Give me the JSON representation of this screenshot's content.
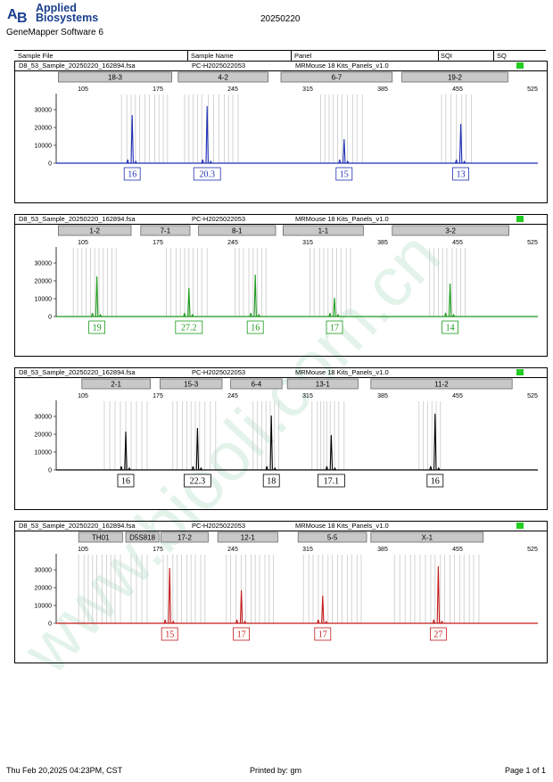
{
  "header": {
    "brand_line1": "Applied",
    "brand_line2": "Biosystems",
    "software": "GeneMapper Software 6",
    "date": "20250220"
  },
  "table_header": {
    "col1": "Sample File",
    "col2": "Sample Name",
    "col3": "Panel",
    "col4": "SQI",
    "col5": "SQ"
  },
  "footer": {
    "left": "Thu Feb 20,2025 04:23PM, CST",
    "center": "Printed by: gm",
    "right": "Page 1 of 1"
  },
  "watermark": "www.biooli.com.cn",
  "colors": {
    "blue": "#1f2fb5",
    "green": "#1a9a1a",
    "black": "#000000",
    "red": "#c41a1a",
    "sq": "#22cc22"
  },
  "chart_data": [
    {
      "type": "line",
      "sample_file": "D8_53_Sample_20250220_162894.fsa",
      "sample_name": "PC-H2025022053",
      "panel": "MRMouse 18 Kits_Panels_v1.0",
      "color": "#1f2fb5",
      "x_ticks": [
        105,
        175,
        245,
        315,
        385,
        455,
        525
      ],
      "y_ticks": [
        0,
        10000,
        20000,
        30000
      ],
      "xlim": [
        80,
        530
      ],
      "ylim": [
        0,
        35000
      ],
      "markers": [
        {
          "label": "18-3",
          "start": 82,
          "end": 188
        },
        {
          "label": "4-2",
          "start": 194,
          "end": 278
        },
        {
          "label": "6-7",
          "start": 290,
          "end": 394
        },
        {
          "label": "19-2",
          "start": 403,
          "end": 502
        }
      ],
      "peaks": [
        {
          "x": 151,
          "height": 27000,
          "allele": "16"
        },
        {
          "x": 221,
          "height": 32000,
          "allele": "20.3"
        },
        {
          "x": 349,
          "height": 13500,
          "allele": "15"
        },
        {
          "x": 458,
          "height": 22000,
          "allele": "13"
        }
      ],
      "bins": [
        [
          141,
          146,
          150,
          154,
          158,
          163,
          167,
          172,
          176,
          180,
          184
        ],
        [
          200,
          204,
          208,
          212,
          216,
          222,
          227,
          232,
          237,
          241,
          245,
          250
        ],
        [
          327,
          331,
          335,
          339,
          343,
          347,
          352,
          357,
          361,
          366
        ],
        [
          440,
          444,
          449,
          454,
          459,
          463,
          468
        ]
      ]
    },
    {
      "type": "line",
      "sample_file": "D8_53_Sample_20250220_162894.fsa",
      "sample_name": "PC-H2025022053",
      "panel": "MRMouse 18 Kits_Panels_v1.0",
      "color": "#1a9a1a",
      "x_ticks": [
        105,
        175,
        245,
        315,
        385,
        455,
        525
      ],
      "y_ticks": [
        0,
        10000,
        20000,
        30000
      ],
      "xlim": [
        80,
        530
      ],
      "ylim": [
        0,
        35000
      ],
      "markers": [
        {
          "label": "1-2",
          "start": 82,
          "end": 150
        },
        {
          "label": "7-1",
          "start": 159,
          "end": 205
        },
        {
          "label": "8-1",
          "start": 213,
          "end": 285
        },
        {
          "label": "1-1",
          "start": 292,
          "end": 367
        },
        {
          "label": "3-2",
          "start": 394,
          "end": 503
        }
      ],
      "peaks": [
        {
          "x": 118,
          "height": 22500,
          "allele": "19"
        },
        {
          "x": 204,
          "height": 16000,
          "allele": "27.2"
        },
        {
          "x": 266,
          "height": 23500,
          "allele": "16"
        },
        {
          "x": 340,
          "height": 10500,
          "allele": "17"
        },
        {
          "x": 448,
          "height": 18500,
          "allele": "14"
        }
      ],
      "bins": [
        [
          96,
          100,
          104,
          108,
          112,
          116,
          120,
          124,
          128,
          132,
          136
        ],
        [
          183,
          187,
          192,
          196,
          200,
          204,
          208,
          212,
          216,
          221
        ],
        [
          247,
          251,
          255,
          260,
          264,
          268,
          272,
          276
        ],
        [
          317,
          321,
          326,
          330,
          334,
          338,
          342,
          346,
          351,
          355
        ],
        [
          429,
          433,
          437,
          441,
          445,
          450,
          454,
          458,
          462
        ]
      ]
    },
    {
      "type": "line",
      "sample_file": "D8_53_Sample_20250220_162894.fsa",
      "sample_name": "PC-H2025022053",
      "panel": "MRMouse 18 Kits_Panels_v1.0",
      "color": "#000000",
      "x_ticks": [
        105,
        175,
        245,
        315,
        385,
        455,
        525
      ],
      "y_ticks": [
        0,
        10000,
        20000,
        30000
      ],
      "xlim": [
        80,
        530
      ],
      "ylim": [
        0,
        35000
      ],
      "markers": [
        {
          "label": "2-1",
          "start": 104,
          "end": 168
        },
        {
          "label": "15-3",
          "start": 177,
          "end": 235
        },
        {
          "label": "6-4",
          "start": 243,
          "end": 291
        },
        {
          "label": "13-1",
          "start": 296,
          "end": 362
        },
        {
          "label": "11-2",
          "start": 374,
          "end": 506
        }
      ],
      "peaks": [
        {
          "x": 145,
          "height": 21500,
          "allele": "16"
        },
        {
          "x": 212,
          "height": 23500,
          "allele": "22.3"
        },
        {
          "x": 281,
          "height": 30500,
          "allele": "18"
        },
        {
          "x": 337,
          "height": 19500,
          "allele": "17.1"
        },
        {
          "x": 434,
          "height": 31500,
          "allele": "16"
        }
      ],
      "bins": [
        [
          125,
          130,
          135,
          140,
          145,
          150,
          155,
          160,
          165
        ],
        [
          189,
          193,
          198,
          202,
          206,
          210,
          214,
          219,
          224,
          229
        ],
        [
          264,
          268,
          272,
          276,
          280,
          284,
          288
        ],
        [
          319,
          324,
          327,
          330,
          333,
          336,
          340,
          344,
          349
        ],
        [
          419,
          423,
          427,
          431,
          435,
          439
        ]
      ]
    },
    {
      "type": "line",
      "sample_file": "D8_53_Sample_20250220_162894.fsa",
      "sample_name": "PC-H2025022053",
      "panel": "MRMouse 18 Kits_Panels_v1.0",
      "color": "#c41a1a",
      "x_ticks": [
        105,
        175,
        245,
        315,
        385,
        455,
        525
      ],
      "y_ticks": [
        0,
        10000,
        20000,
        30000
      ],
      "xlim": [
        80,
        530
      ],
      "ylim": [
        0,
        35000
      ],
      "markers": [
        {
          "label": "TH01",
          "start": 101,
          "end": 142
        },
        {
          "label": "D5S818",
          "start": 145,
          "end": 176
        },
        {
          "label": "17-2",
          "start": 178,
          "end": 222
        },
        {
          "label": "12-1",
          "start": 231,
          "end": 287
        },
        {
          "label": "5-5",
          "start": 306,
          "end": 370
        },
        {
          "label": "X-1",
          "start": 374,
          "end": 479
        }
      ],
      "peaks": [
        {
          "x": 186,
          "height": 31000,
          "allele": "15"
        },
        {
          "x": 253,
          "height": 18500,
          "allele": "17"
        },
        {
          "x": 329,
          "height": 15500,
          "allele": "17"
        },
        {
          "x": 437,
          "height": 32000,
          "allele": "27"
        }
      ],
      "bins": [
        [
          101,
          106,
          110,
          114,
          118,
          123,
          127,
          131,
          135,
          140
        ],
        [
          150,
          155,
          160,
          165
        ],
        [
          180,
          184,
          189,
          193,
          197,
          202,
          206,
          210,
          215,
          219
        ],
        [
          239,
          243,
          248,
          253,
          257,
          262,
          266,
          270,
          275,
          279,
          283
        ],
        [
          311,
          316,
          320,
          325,
          329,
          334,
          338,
          343,
          347,
          352,
          356,
          361,
          365
        ],
        [
          396,
          401,
          406,
          411,
          415,
          420,
          425,
          430,
          434,
          439,
          443,
          448,
          452,
          457,
          461,
          466,
          470,
          475
        ]
      ]
    }
  ]
}
